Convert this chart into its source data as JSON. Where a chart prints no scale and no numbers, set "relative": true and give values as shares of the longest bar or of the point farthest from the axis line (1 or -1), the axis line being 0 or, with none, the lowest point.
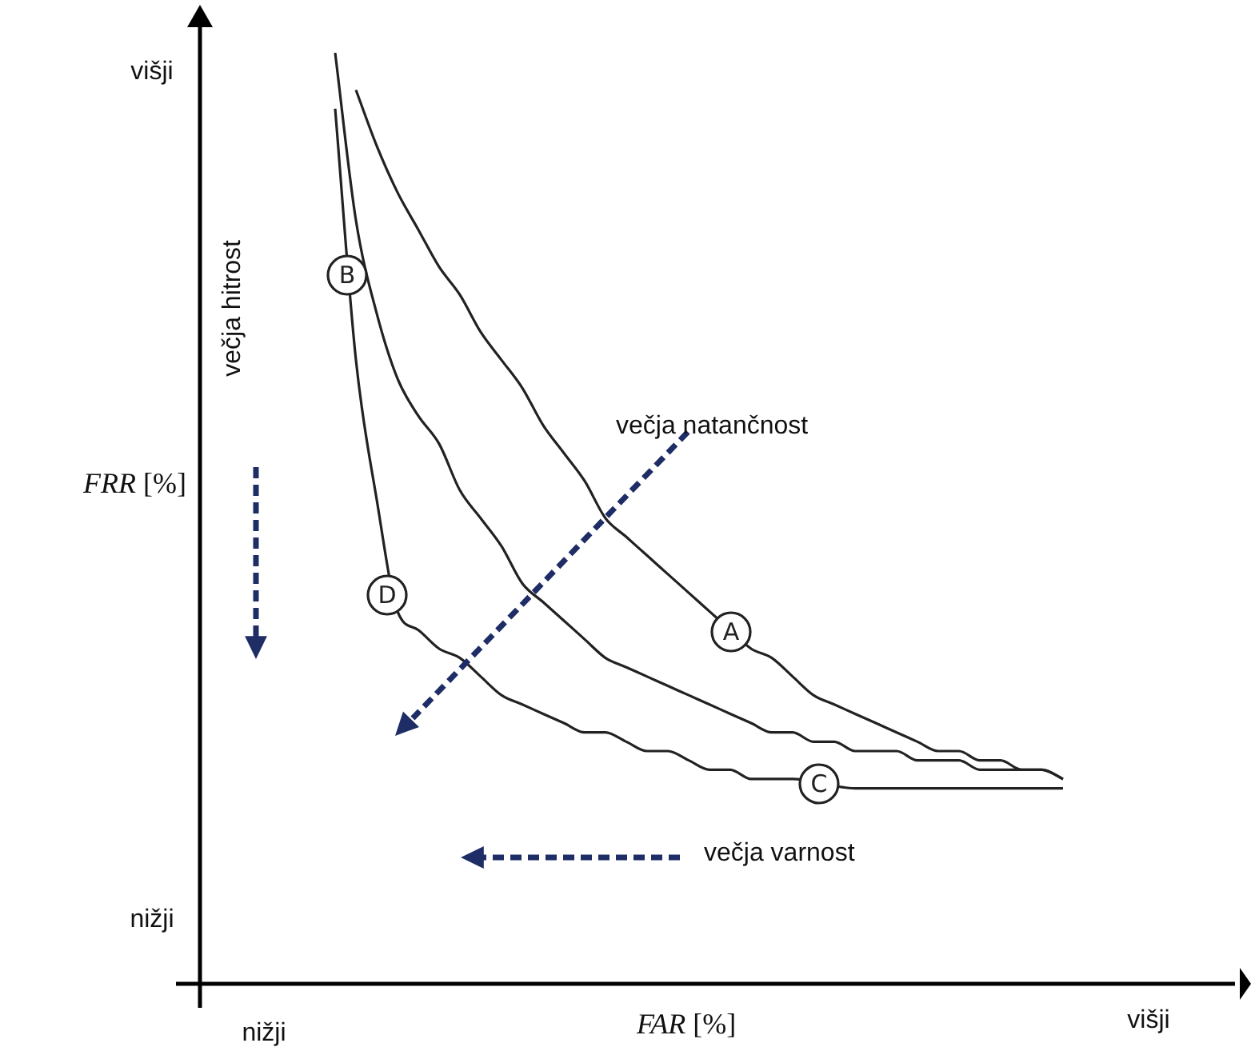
{
  "chart_data": {
    "type": "line",
    "xlabel": "FAR [%]",
    "ylabel": "FRR [%]",
    "relative": true,
    "categories": [
      null,
      null,
      null,
      null,
      null,
      null,
      null,
      null,
      null,
      null,
      null,
      null,
      null,
      null,
      null,
      null,
      null,
      null,
      null,
      null,
      null,
      null,
      null,
      null,
      null,
      null,
      null,
      null,
      null,
      null,
      null,
      null,
      null,
      null,
      null,
      null,
      null
    ],
    "grid": false,
    "legend": false,
    "marker": "none",
    "line_style": "solid",
    "series": [
      {
        "color": "#222222",
        "values": [
          null,
          0.96,
          0.9,
          0.85,
          0.81,
          0.77,
          0.74,
          0.7,
          0.67,
          0.64,
          0.6,
          0.57,
          0.54,
          0.5,
          0.48,
          0.46,
          0.44,
          0.42,
          0.4,
          0.38,
          0.36,
          0.35,
          0.33,
          0.31,
          0.3,
          0.29,
          0.28,
          0.27,
          0.26,
          0.25,
          0.25,
          0.24,
          0.24,
          0.23,
          0.23,
          0.22,
          null
        ]
      },
      {
        "color": "#222222",
        "values": [
          1,
          0.82,
          0.72,
          0.65,
          0.61,
          0.58,
          0.53,
          0.5,
          0.47,
          0.43,
          0.41,
          0.39,
          0.37,
          0.35,
          0.34,
          0.33,
          0.32,
          0.31,
          0.3,
          0.29,
          0.28,
          0.27,
          0.27,
          0.26,
          0.26,
          0.25,
          0.25,
          0.25,
          0.24,
          0.24,
          0.24,
          0.23,
          0.23,
          0.23,
          0.23,
          0.22,
          null
        ]
      },
      {
        "color": "#222222",
        "values": [
          0.94,
          0.67,
          0.52,
          0.4,
          0.38,
          0.36,
          0.35,
          0.33,
          0.31,
          0.3,
          0.29,
          0.28,
          0.27,
          0.27,
          0.26,
          0.25,
          0.25,
          0.24,
          0.23,
          0.23,
          0.22,
          0.22,
          0.22,
          null,
          null,
          0.21,
          0.21,
          0.21,
          0.21,
          0.21,
          0.21,
          0.21,
          0.21,
          0.21,
          0.21,
          0.21,
          null
        ]
      }
    ],
    "annotations": [
      "višji",
      "nižji",
      "nižji",
      "višji",
      "večja hitrost",
      "večja natančnost",
      "večja varnost",
      "B",
      "D",
      "A",
      "C"
    ]
  }
}
